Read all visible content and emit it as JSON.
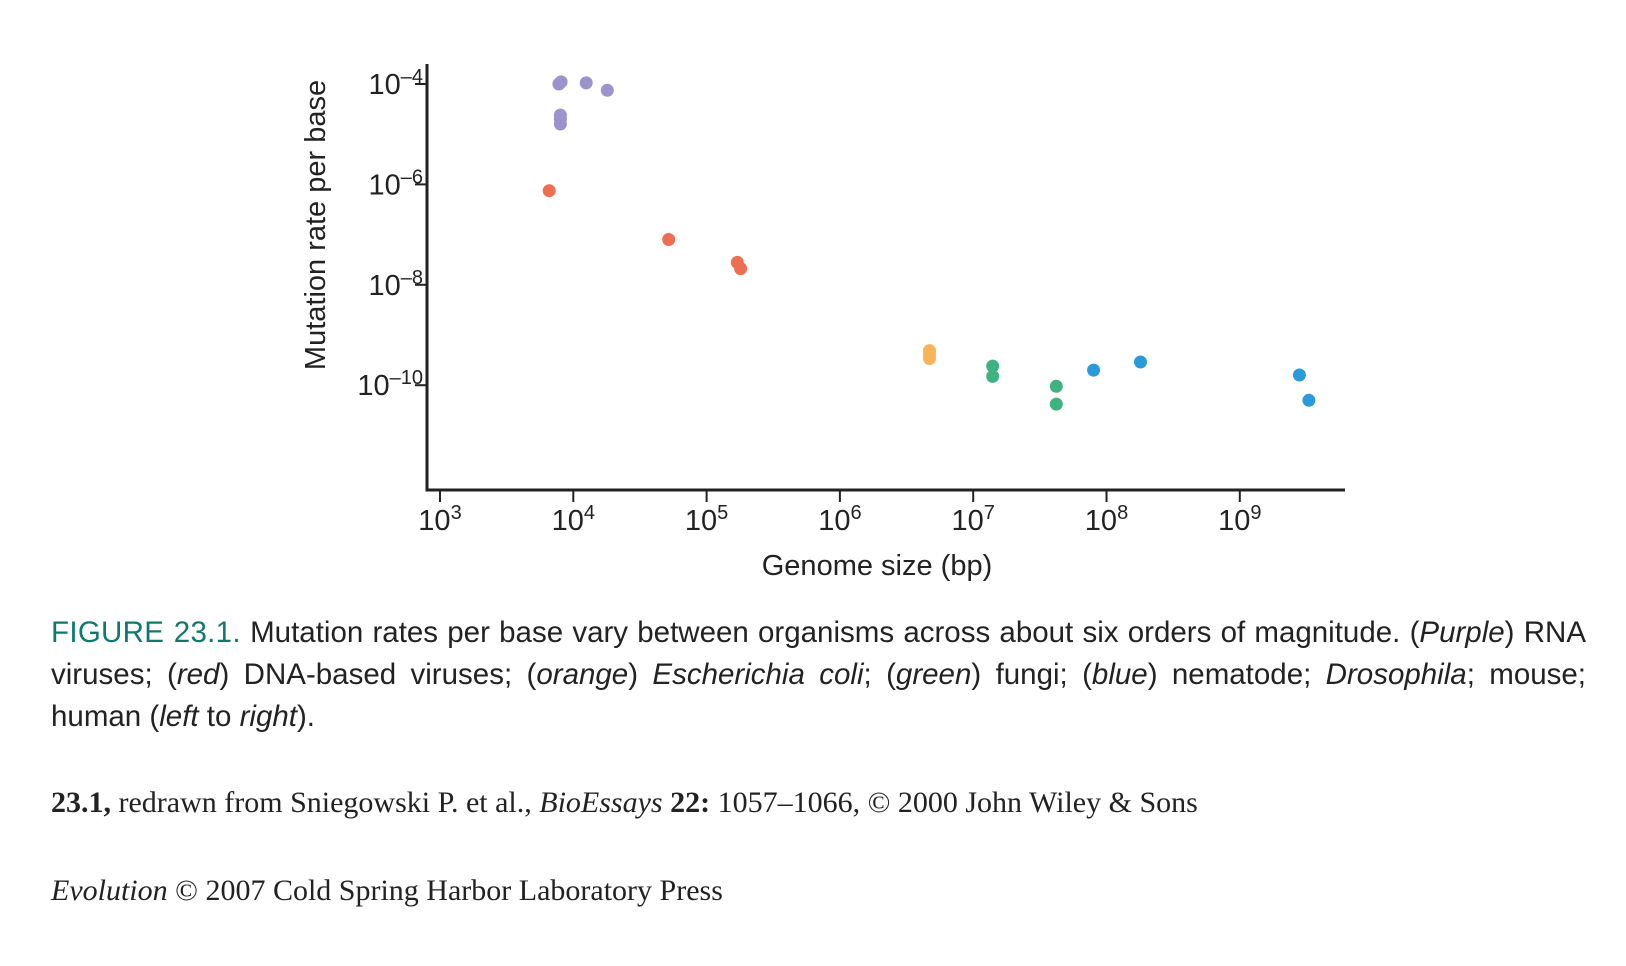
{
  "chart_data": {
    "type": "scatter",
    "xlabel": "Genome size (bp)",
    "ylabel": "Mutation rate per base",
    "x_scale": "log",
    "y_scale": "log",
    "xlim": [
      1000,
      5000000000
    ],
    "ylim": [
      1e-12,
      0.0002
    ],
    "x_ticks": [
      {
        "value": 1000,
        "base": "10",
        "exp": "3"
      },
      {
        "value": 10000,
        "base": "10",
        "exp": "4"
      },
      {
        "value": 100000,
        "base": "10",
        "exp": "5"
      },
      {
        "value": 1000000,
        "base": "10",
        "exp": "6"
      },
      {
        "value": 10000000,
        "base": "10",
        "exp": "7"
      },
      {
        "value": 100000000,
        "base": "10",
        "exp": "8"
      },
      {
        "value": 1000000000,
        "base": "10",
        "exp": "9"
      }
    ],
    "y_ticks": [
      {
        "value": 0.0001,
        "base": "10",
        "exp": "–4"
      },
      {
        "value": 1e-06,
        "base": "10",
        "exp": "–6"
      },
      {
        "value": 1e-08,
        "base": "10",
        "exp": "–8"
      },
      {
        "value": 1e-10,
        "base": "10",
        "exp": "–10"
      }
    ],
    "grid": false,
    "legend": "none",
    "series": [
      {
        "color": "#9b93cc",
        "points": [
          [
            7800,
            0.0001
          ],
          [
            8100,
            0.00011
          ],
          [
            12500,
            0.000105
          ],
          [
            18000,
            7.5e-05
          ],
          [
            8000,
            2.4e-05
          ],
          [
            8000,
            2e-05
          ],
          [
            8000,
            1.6e-05
          ]
        ]
      },
      {
        "color": "#ee6e52",
        "points": [
          [
            6600,
            7.5e-07
          ],
          [
            52000,
            8e-08
          ],
          [
            170000,
            2.8e-08
          ],
          [
            180000,
            2.1e-08
          ]
        ]
      },
      {
        "color": "#f7b558",
        "points": [
          [
            4700000,
            4.9e-10
          ],
          [
            4700000,
            4.1e-10
          ],
          [
            4700000,
            3.4e-10
          ]
        ]
      },
      {
        "color": "#3fb37f",
        "points": [
          [
            14000000,
            2.4e-10
          ],
          [
            14000000,
            1.5e-10
          ],
          [
            42000000,
            9.5e-11
          ],
          [
            42000000,
            4.2e-11
          ]
        ]
      },
      {
        "color": "#2a9bd8",
        "points": [
          [
            80000000,
            2e-10
          ],
          [
            180000000,
            2.9e-10
          ],
          [
            2800000000,
            1.6e-10
          ],
          [
            3300000000,
            5e-11
          ]
        ]
      }
    ]
  },
  "caption": {
    "label": "FIGURE 23.1.",
    "t1": " Mutation rates per base vary between organisms across about six orders of magnitude. (",
    "purple": "Purple",
    "t2": ") RNA viruses; (",
    "red": "red",
    "t3": ") DNA-based viruses; (",
    "orange": "orange",
    "t4": ") ",
    "ecoli": "Escherichia coli",
    "t5": "; (",
    "green": "green",
    "t6": ") fungi; (",
    "blue": "blue",
    "t7": ") nematode; ",
    "drosophila": "Drosophila",
    "t8": "; mouse; human (",
    "left": "left",
    "t9": " to ",
    "right": "right",
    "t10": ")."
  },
  "credit1": {
    "num": "23.1,",
    "t1": " redrawn from Sniegowski P. et al., ",
    "journal": "BioEssays",
    "t2": " ",
    "vol": "22:",
    "t3": " 1057–1066, © 2000 John Wiley & Sons"
  },
  "credit2": {
    "book": "Evolution",
    "t1": " © 2007 Cold Spring Harbor Laboratory Press"
  }
}
